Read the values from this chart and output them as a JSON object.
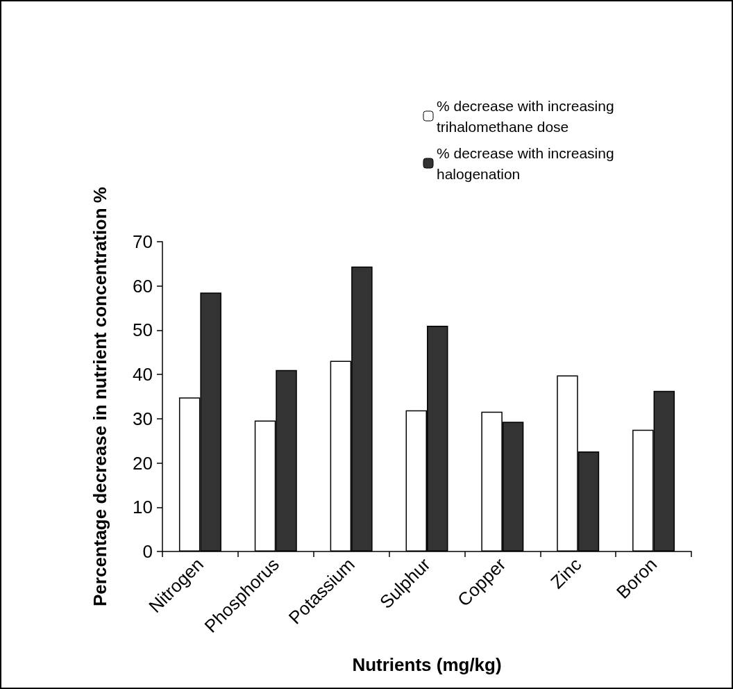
{
  "chart_data": {
    "type": "bar",
    "xlabel": "Nutrients (mg/kg)",
    "ylabel": "Percentage decrease in nutrient concentration %",
    "categories": [
      "Nitrogen",
      "Phosphorus",
      "Potassium",
      "Sulphur",
      "Copper",
      "Zinc",
      "Boron"
    ],
    "series": [
      {
        "name": "% decrease with increasing trihalomethane dose",
        "color": "#ffffff",
        "values": [
          34.8,
          29.6,
          43.1,
          31.9,
          31.6,
          39.8,
          27.5
        ]
      },
      {
        "name": "% decrease with increasing halogenation",
        "color": "#333333",
        "values": [
          58.5,
          41.0,
          64.4,
          51.0,
          29.3,
          22.6,
          36.3
        ]
      }
    ],
    "ylim": [
      0,
      70
    ],
    "yticks": [
      0,
      10,
      20,
      30,
      40,
      50,
      60,
      70
    ],
    "grid": false,
    "legend": "top right"
  }
}
